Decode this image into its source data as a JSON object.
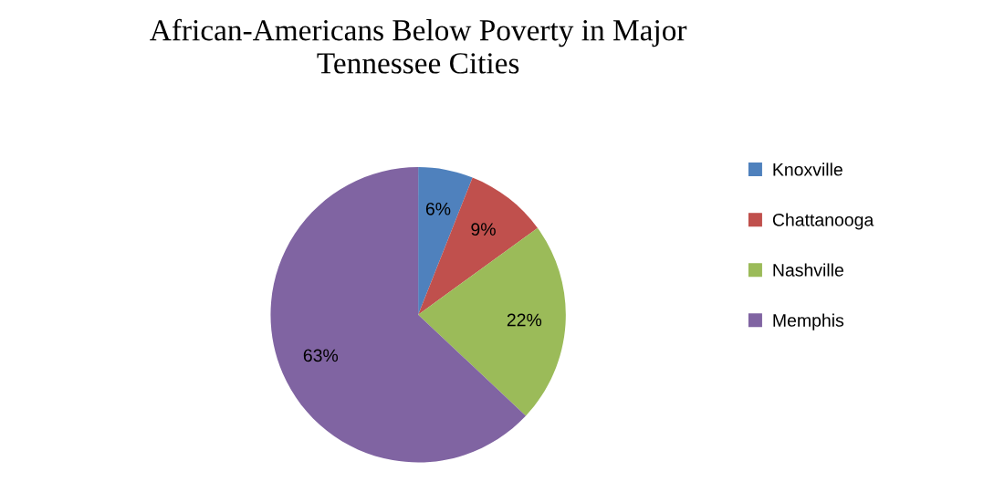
{
  "chart_data": {
    "type": "pie",
    "title": "African-Americans Below Poverty in Major\nTennessee Cities",
    "categories": [
      "Knoxville",
      "Chattanooga",
      "Nashville",
      "Memphis"
    ],
    "values": [
      6,
      9,
      22,
      63
    ],
    "value_labels": [
      "6%",
      "9%",
      "22%",
      "63%"
    ],
    "colors": [
      "#4f81bd",
      "#c0504d",
      "#9bbb59",
      "#8064a2"
    ],
    "legend": "right"
  }
}
